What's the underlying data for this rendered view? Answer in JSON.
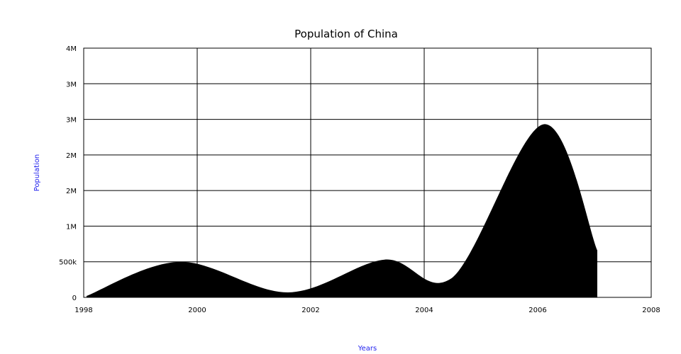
{
  "chart_data": {
    "type": "area",
    "title": "Population of China",
    "xlabel": "Years",
    "ylabel": "Population",
    "xlim": [
      1998,
      2008
    ],
    "ylim": [
      0,
      3500000
    ],
    "x_ticks": [
      "1998",
      "2000",
      "2002",
      "2004",
      "2006",
      "2008"
    ],
    "y_ticks": [
      "0",
      "500k",
      "1M",
      "2M",
      "2M",
      "3M",
      "3M",
      "4M"
    ],
    "grid": true,
    "series": [
      {
        "x": [
          1998.05,
          1999.7,
          2001.6,
          2003.3,
          2004.5,
          2006.1,
          2007.05
        ],
        "values": [
          20000,
          500000,
          70000,
          530000,
          280000,
          2430000,
          660000
        ],
        "color": "#000000"
      }
    ],
    "axis_label_color": "#2222ee"
  }
}
